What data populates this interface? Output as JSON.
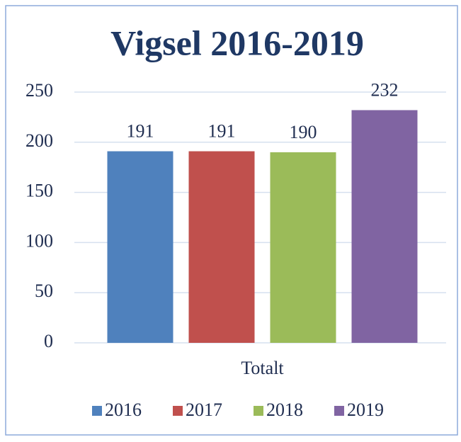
{
  "chart_data": {
    "type": "bar",
    "title": "Vigsel 2016-2019",
    "categories": [
      "Totalt"
    ],
    "series": [
      {
        "name": "2016",
        "color": "#4f81bd",
        "values": [
          191
        ]
      },
      {
        "name": "2017",
        "color": "#c0504d",
        "values": [
          191
        ]
      },
      {
        "name": "2018",
        "color": "#9bbb59",
        "values": [
          190
        ]
      },
      {
        "name": "2019",
        "color": "#8064a2",
        "values": [
          232
        ]
      }
    ],
    "ylim": [
      0,
      250
    ],
    "yticks": [
      0,
      50,
      100,
      150,
      200,
      250
    ],
    "grid": true,
    "legend": "bottom"
  }
}
